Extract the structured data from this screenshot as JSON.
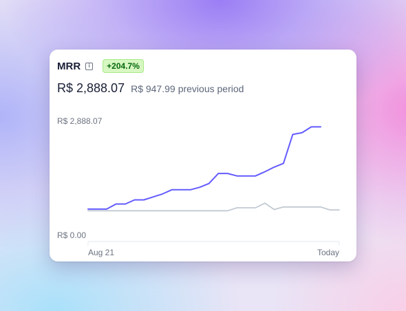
{
  "card": {
    "title": "MRR",
    "info_icon": "info-icon",
    "info_glyph": "i",
    "badge": "+204.7%",
    "current_value": "R$ 2,888.07",
    "previous_value": "R$ 947.99",
    "previous_label": "previous period"
  },
  "colors": {
    "current_series": "#635bff",
    "previous_series": "#c1c9d2",
    "badge_bg": "#d7f7c2",
    "badge_text": "#05690d"
  },
  "chart_data": {
    "type": "line",
    "ymax_label": "R$ 2,888.07",
    "ymin_label": "R$ 0.00",
    "ylim": [
      0,
      2888.07
    ],
    "x_start_label": "Aug 21",
    "x_end_label": "Today",
    "series": [
      {
        "values": [
          790,
          790,
          790,
          910,
          910,
          1010,
          1010,
          1080,
          1150,
          1250,
          1250,
          1250,
          1310,
          1400,
          1640,
          1640,
          1580,
          1580,
          1580,
          1680,
          1790,
          1880,
          2570,
          2610,
          2750,
          2750
        ]
      },
      {
        "values": [
          750,
          750,
          750,
          750,
          750,
          750,
          750,
          750,
          750,
          750,
          750,
          750,
          750,
          750,
          750,
          750,
          820,
          820,
          820,
          930,
          780,
          840,
          840,
          840,
          840,
          840,
          770,
          770
        ]
      }
    ]
  }
}
